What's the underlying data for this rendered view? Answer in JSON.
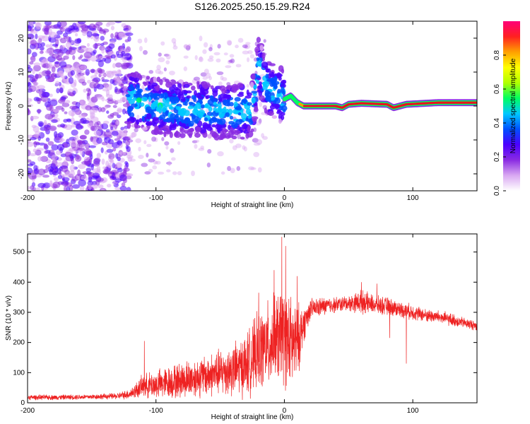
{
  "figure_title": "S126.2025.250.15.29.R24",
  "colors": {
    "frame": "#000000",
    "snr_line": "#ee2222",
    "ridge_core": "#e8141e"
  },
  "chart_data": [
    {
      "type": "heatmap",
      "title": "S126.2025.250.15.29.R24",
      "xlabel": "Height of straight line (km)",
      "ylabel": "Frequency (Hz)",
      "xlim": [
        -200,
        150
      ],
      "ylim": [
        -25,
        25
      ],
      "x_ticks": [
        -200,
        -100,
        0,
        100
      ],
      "x_tick_labels": [
        "-200",
        "-100",
        "0",
        "100"
      ],
      "y_ticks": [
        -20,
        -10,
        0,
        10,
        20
      ],
      "y_tick_labels": [
        "-20",
        "-10",
        "0",
        "10",
        "20"
      ],
      "colorbar": {
        "label": "Normalized spectral amplitude",
        "range": [
          0,
          1
        ],
        "ticks": [
          0,
          0.2,
          0.4,
          0.6,
          0.8
        ],
        "tick_labels": [
          "0.0",
          "0.2",
          "0.4",
          "0.6",
          "0.8"
        ],
        "colormap": [
          "#ffffff",
          "#d9a8f2",
          "#8a2be2",
          "#4b00ff",
          "#0050ff",
          "#00c8ff",
          "#00ff60",
          "#b0ff00",
          "#ffff00",
          "#ffa000",
          "#ff2020",
          "#ff0078"
        ]
      },
      "ridge": {
        "x": [
          -120,
          -100,
          -80,
          -60,
          -40,
          -25,
          -20,
          -15,
          -10,
          -5,
          0,
          5,
          10,
          15,
          20,
          40,
          45,
          50,
          60,
          80,
          85,
          95,
          110,
          120,
          150
        ],
        "frequency": [
          2,
          0,
          -1,
          -1,
          -2,
          -1,
          12,
          6,
          5,
          4,
          2,
          3,
          1,
          0,
          0,
          0,
          -0.5,
          0.5,
          0.8,
          0.5,
          -0.5,
          0.5,
          0.8,
          1.0,
          1.0
        ]
      }
    },
    {
      "type": "line",
      "xlabel": "Height of straight line (km)",
      "ylabel": "SNR (10 * v/v)",
      "xlim": [
        -200,
        150
      ],
      "ylim": [
        0,
        560
      ],
      "x_ticks": [
        -200,
        -100,
        0,
        100
      ],
      "x_tick_labels": [
        "-200",
        "-100",
        "0",
        "100"
      ],
      "y_ticks": [
        0,
        100,
        200,
        300,
        400,
        500
      ],
      "y_tick_labels": [
        "0",
        "100",
        "200",
        "300",
        "400",
        "500"
      ],
      "series": [
        {
          "name": "SNR",
          "envelope_x": [
            -200,
            -180,
            -150,
            -130,
            -120,
            -110,
            -100,
            -80,
            -60,
            -40,
            -30,
            -20,
            -10,
            -5,
            0,
            5,
            10,
            15,
            20,
            30,
            40,
            50,
            60,
            70,
            80,
            90,
            100,
            110,
            120,
            130,
            140,
            150
          ],
          "envelope_mean": [
            18,
            18,
            20,
            22,
            30,
            55,
            60,
            75,
            90,
            110,
            125,
            170,
            200,
            215,
            220,
            195,
            200,
            260,
            310,
            320,
            325,
            330,
            335,
            325,
            320,
            310,
            300,
            290,
            285,
            275,
            265,
            255
          ],
          "envelope_spread": [
            10,
            10,
            10,
            12,
            20,
            45,
            55,
            70,
            80,
            100,
            120,
            150,
            170,
            180,
            190,
            180,
            150,
            70,
            40,
            35,
            30,
            30,
            45,
            35,
            35,
            30,
            30,
            25,
            25,
            25,
            20,
            20
          ],
          "peaks": [
            {
              "x": -109,
              "y": 205
            },
            {
              "x": -20,
              "y": 365
            },
            {
              "x": -8,
              "y": 440
            },
            {
              "x": -2,
              "y": 550
            },
            {
              "x": 1,
              "y": 520
            },
            {
              "x": 10,
              "y": 420
            },
            {
              "x": 60,
              "y": 400
            },
            {
              "x": 72,
              "y": 395
            },
            {
              "x": 95,
              "y": 295
            }
          ],
          "dips": [
            {
              "x": 95,
              "y": 130
            },
            {
              "x": 82,
              "y": 215
            }
          ]
        }
      ]
    }
  ]
}
